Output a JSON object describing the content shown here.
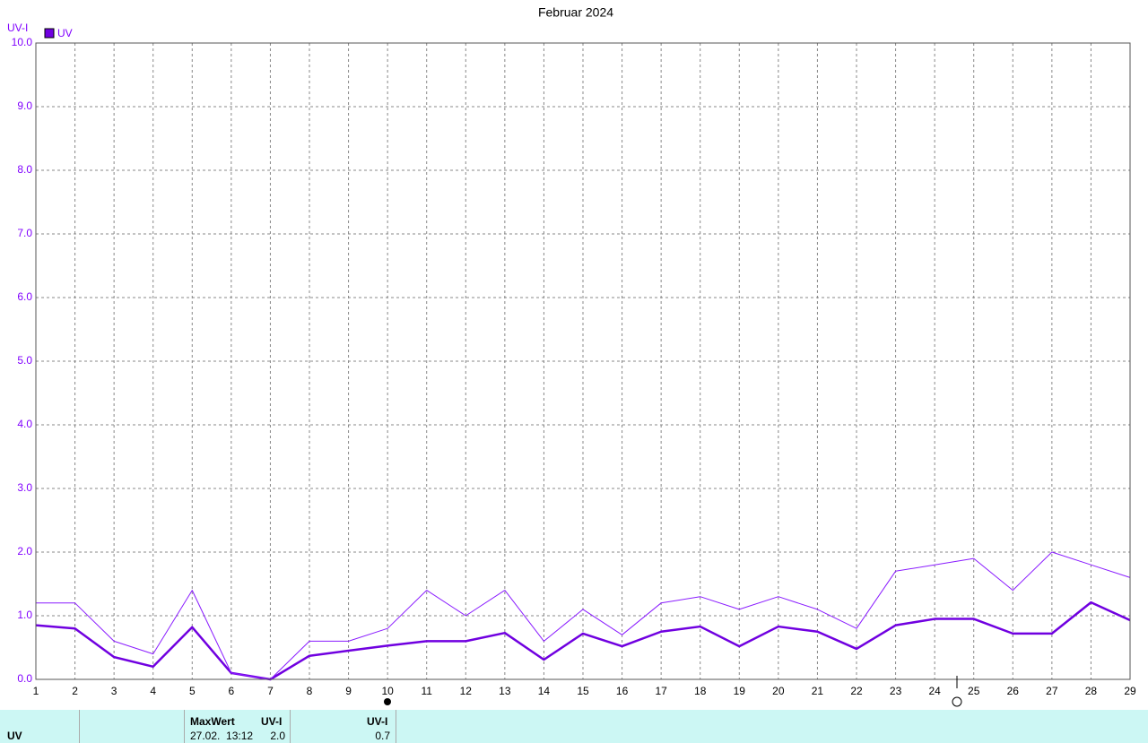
{
  "chart_data": {
    "type": "line",
    "title": "Februar 2024",
    "y_label": "UV-I",
    "x": [
      1,
      2,
      3,
      4,
      5,
      6,
      7,
      8,
      9,
      10,
      11,
      12,
      13,
      14,
      15,
      16,
      17,
      18,
      19,
      20,
      21,
      22,
      23,
      24,
      25,
      26,
      27,
      28,
      29
    ],
    "xlim": [
      1,
      29
    ],
    "xticks": [
      1,
      2,
      3,
      4,
      5,
      6,
      7,
      8,
      9,
      10,
      11,
      12,
      13,
      14,
      15,
      16,
      17,
      18,
      19,
      20,
      21,
      22,
      23,
      24,
      25,
      26,
      27,
      28,
      29
    ],
    "ylim": [
      0,
      10
    ],
    "yticks": [
      {
        "value": 0,
        "label": "0.0"
      },
      {
        "value": 1,
        "label": "1.0"
      },
      {
        "value": 2,
        "label": "2.0"
      },
      {
        "value": 3,
        "label": "3.0"
      },
      {
        "value": 4,
        "label": "4.0"
      },
      {
        "value": 5,
        "label": "5.0"
      },
      {
        "value": 6,
        "label": "6.0"
      },
      {
        "value": 7,
        "label": "7.0"
      },
      {
        "value": 8,
        "label": "8.0"
      },
      {
        "value": 9,
        "label": "9.0"
      },
      {
        "value": 10,
        "label": "10.0"
      }
    ],
    "grid": true,
    "series": [
      {
        "name": "UV",
        "color": "#7000e0",
        "width": 2.5,
        "values": [
          0.85,
          0.8,
          0.35,
          0.2,
          0.82,
          0.1,
          0,
          0.37,
          0.45,
          0.53,
          0.6,
          0.6,
          0.73,
          0.31,
          0.72,
          0.52,
          0.75,
          0.83,
          0.52,
          0.83,
          0.75,
          0.48,
          0.85,
          0.95,
          0.95,
          0.72,
          0.72,
          1.21,
          0.93
        ]
      },
      {
        "color": "#8a1cff",
        "width": 1,
        "values": [
          1.2,
          1.2,
          0.6,
          0.4,
          1.4,
          0.1,
          0,
          0.6,
          0.6,
          0.8,
          1.4,
          1.0,
          1.4,
          0.6,
          1.1,
          0.7,
          1.2,
          1.3,
          1.1,
          1.3,
          1.1,
          0.8,
          1.7,
          1.8,
          1.9,
          1.4,
          2.0,
          1.8,
          1.6
        ]
      }
    ]
  },
  "table": {
    "row_label": "UV",
    "headers": [
      "MaxWert",
      "UV-I",
      "UV-I"
    ],
    "cells": [
      "27.02.  13:12",
      "2.0",
      "0.7"
    ]
  }
}
